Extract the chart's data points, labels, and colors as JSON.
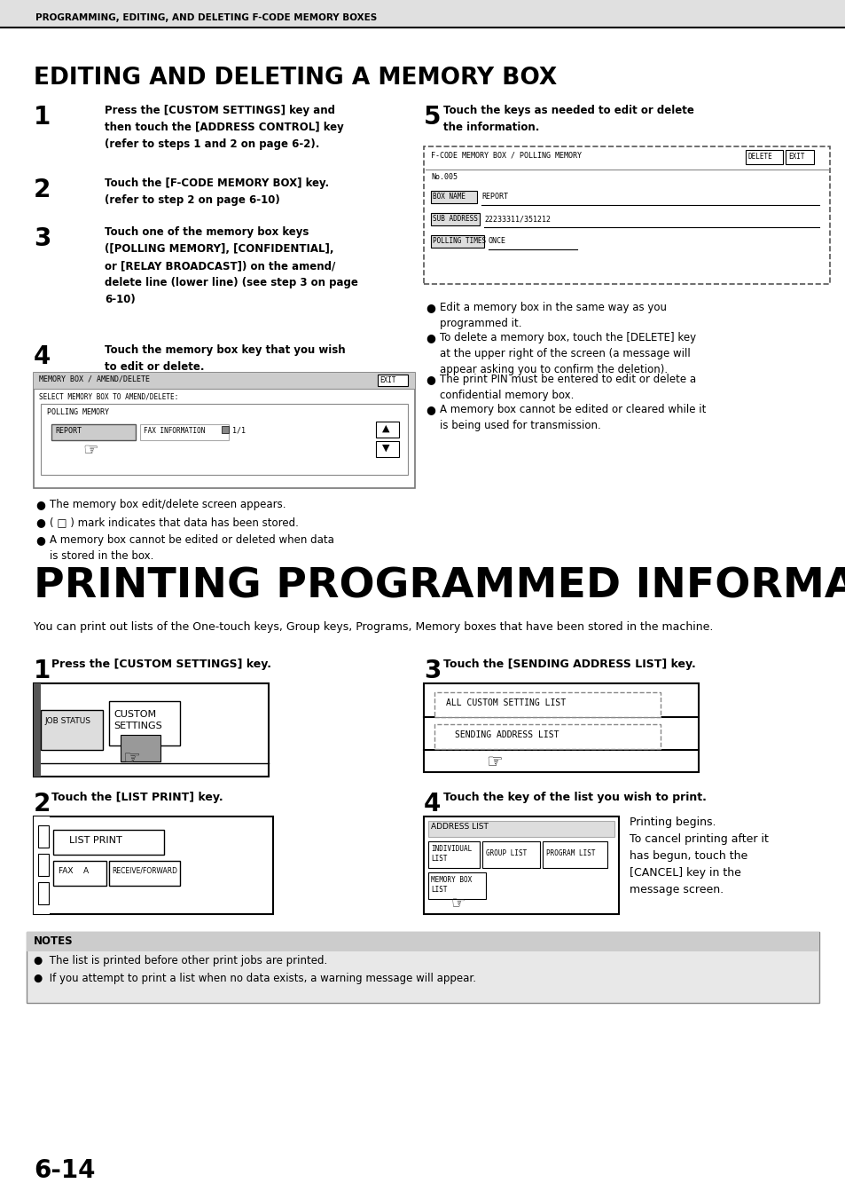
{
  "page_header": "PROGRAMMING, EDITING, AND DELETING F-CODE MEMORY BOXES",
  "section1_title": "EDITING AND DELETING A MEMORY BOX",
  "section2_title": "PRINTING PROGRAMMED INFORMATION",
  "section2_subtitle": "You can print out lists of the One-touch keys, Group keys, Programs, Memory boxes that have been stored in the machine.",
  "step1_text": "Press the [CUSTOM SETTINGS] key and\nthen touch the [ADDRESS CONTROL] key\n(refer to steps 1 and 2 on page 6-2).",
  "step2_text": "Touch the [F-CODE MEMORY BOX] key.\n(refer to step 2 on page 6-10)",
  "step3_text": "Touch one of the memory box keys\n([POLLING MEMORY], [CONFIDENTIAL],\nor [RELAY BROADCAST]) on the amend/\ndelete line (lower line) (see step 3 on page\n6-10)",
  "step4_text": "Touch the memory box key that you wish\nto edit or delete.",
  "step5_text": "Touch the keys as needed to edit or delete\nthe information.",
  "bullets_left": [
    "The memory box edit/delete screen appears.",
    "( □ ) mark indicates that data has been stored.",
    "A memory box cannot be edited or deleted when data\nis stored in the box."
  ],
  "bullets_right": [
    "Edit a memory box in the same way as you\nprogrammed it.",
    "To delete a memory box, touch the [DELETE] key\nat the upper right of the screen (a message will\nappear asking you to confirm the deletion).",
    "The print PIN must be entered to edit or delete a\nconfidential memory box.",
    "A memory box cannot be edited or cleared while it\nis being used for transmission."
  ],
  "print_step1": "Press the [CUSTOM SETTINGS] key.",
  "print_step2": "Touch the [LIST PRINT] key.",
  "print_step3": "Touch the [SENDING ADDRESS LIST] key.",
  "print_step4": "Touch the key of the list you wish to print.",
  "print_step4_text": "Printing begins.\nTo cancel printing after it\nhas begun, touch the\n[CANCEL] key in the\nmessage screen.",
  "notes": [
    "The list is printed before other print jobs are printed.",
    "If you attempt to print a list when no data exists, a warning message will appear."
  ],
  "page_number": "6-14",
  "bg_color": "#ffffff"
}
